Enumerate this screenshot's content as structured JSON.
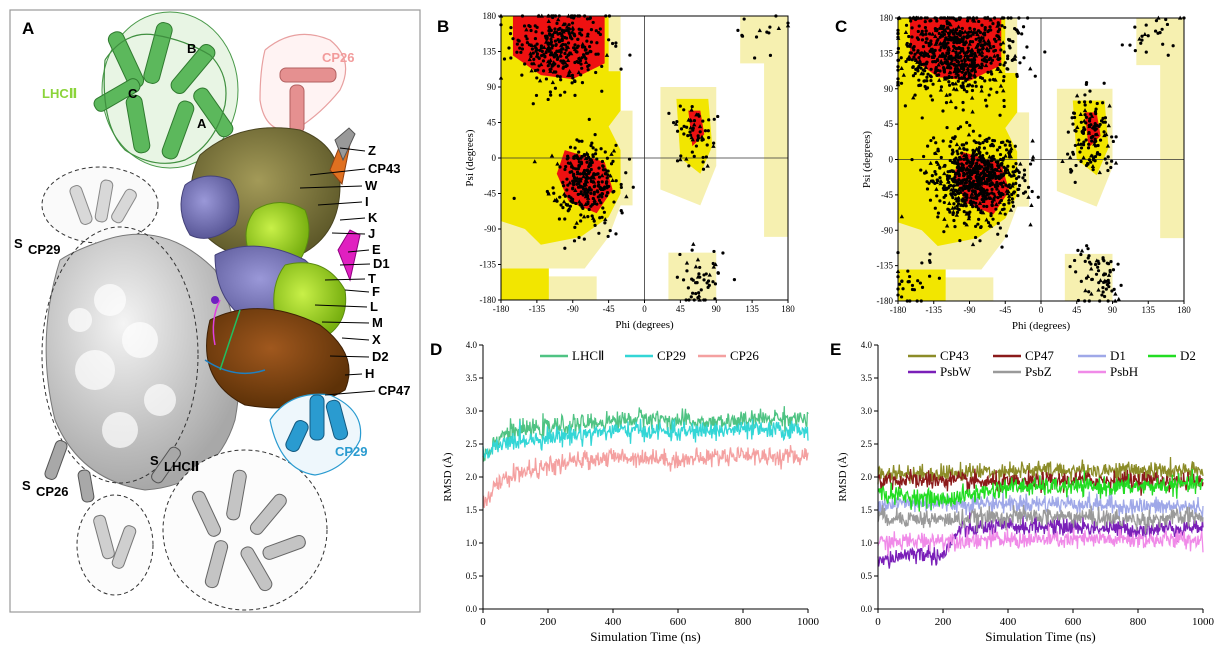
{
  "panel_letters": {
    "a": "A",
    "b": "B",
    "c": "C",
    "d": "D",
    "e": "E"
  },
  "panel_a": {
    "labels": {
      "lhc": "LHCⅡ",
      "lhc_b": "B",
      "lhc_c": "C",
      "lhc_a": "A",
      "cp26": "CP26",
      "cp29": "CP29",
      "s_cp29": "S",
      "s_cp29_sub": "CP29",
      "s_cp26": "S",
      "s_cp26_sub": "CP26",
      "s_lhc": "S",
      "s_lhc_sub": "LHCⅡ"
    },
    "subunit_labels": [
      "Z",
      "CP43",
      "W",
      "I",
      "K",
      "J",
      "E",
      "D1",
      "T",
      "F",
      "L",
      "M",
      "X",
      "D2",
      "H",
      "CP47"
    ],
    "colors": {
      "lhc": "#5cb85c",
      "lhc_text": "#8bd43a",
      "cp26": "#f2a0a0",
      "cp29": "#2a9bd0"
    }
  },
  "chart_data": [
    {
      "id": "B",
      "type": "scatter",
      "title": "",
      "xlabel": "Phi (degrees)",
      "ylabel": "Psi (degrees)",
      "xlim": [
        -180,
        180
      ],
      "ylim": [
        -180,
        180
      ],
      "xticks": [
        -180,
        -135,
        -90,
        -45,
        0,
        45,
        90,
        135,
        180
      ],
      "yticks": [
        180,
        135,
        90,
        45,
        0,
        -45,
        -90,
        -135,
        -180
      ],
      "clusters": [
        {
          "x": -110,
          "y": 140,
          "spread_x": 28,
          "spread_y": 25,
          "n": 320
        },
        {
          "x": -75,
          "y": -30,
          "spread_x": 22,
          "spread_y": 25,
          "n": 300
        },
        {
          "x": 62,
          "y": 30,
          "spread_x": 14,
          "spread_y": 22,
          "n": 60
        },
        {
          "x": 72,
          "y": -155,
          "spread_x": 18,
          "spread_y": 20,
          "n": 50
        },
        {
          "x": 150,
          "y": 160,
          "spread_x": 20,
          "spread_y": 15,
          "n": 15
        }
      ]
    },
    {
      "id": "C",
      "type": "scatter",
      "title": "",
      "xlabel": "Phi (degrees)",
      "ylabel": "Psi (degrees)",
      "xlim": [
        -180,
        180
      ],
      "ylim": [
        -180,
        180
      ],
      "xticks": [
        -180,
        -135,
        -90,
        -45,
        0,
        45,
        90,
        135,
        180
      ],
      "yticks": [
        180,
        135,
        90,
        45,
        0,
        -45,
        -90,
        -135,
        -180
      ],
      "clusters": [
        {
          "x": -105,
          "y": 135,
          "spread_x": 35,
          "spread_y": 28,
          "n": 700
        },
        {
          "x": -80,
          "y": -25,
          "spread_x": 28,
          "spread_y": 28,
          "n": 700
        },
        {
          "x": 62,
          "y": 30,
          "spread_x": 14,
          "spread_y": 25,
          "n": 130
        },
        {
          "x": 72,
          "y": -150,
          "spread_x": 18,
          "spread_y": 22,
          "n": 70
        },
        {
          "x": 140,
          "y": 160,
          "spread_x": 25,
          "spread_y": 15,
          "n": 25
        },
        {
          "x": -160,
          "y": -155,
          "spread_x": 15,
          "spread_y": 15,
          "n": 30
        }
      ]
    },
    {
      "id": "D",
      "type": "line",
      "title": "",
      "xlabel": "Simulation Time (ns)",
      "ylabel": "RMSD (Å)",
      "xlim": [
        0,
        1000
      ],
      "ylim": [
        0,
        4.0
      ],
      "xticks": [
        0,
        200,
        400,
        600,
        800,
        1000
      ],
      "yticks": [
        0.0,
        0.5,
        1.0,
        1.5,
        2.0,
        2.5,
        3.0,
        3.5,
        4.0
      ],
      "legend_position": "top-center",
      "series": [
        {
          "name": "LHCⅡ",
          "color": "#4fc383",
          "x": [
            0,
            30,
            60,
            100,
            200,
            300,
            400,
            500,
            600,
            700,
            800,
            900,
            1000
          ],
          "y": [
            2.3,
            2.5,
            2.65,
            2.7,
            2.75,
            2.8,
            2.85,
            2.9,
            2.85,
            2.82,
            2.85,
            2.9,
            2.88
          ]
        },
        {
          "name": "CP29",
          "color": "#33d6d6",
          "x": [
            0,
            30,
            60,
            100,
            200,
            300,
            400,
            500,
            600,
            700,
            800,
            900,
            1000
          ],
          "y": [
            2.3,
            2.4,
            2.5,
            2.55,
            2.6,
            2.65,
            2.7,
            2.7,
            2.68,
            2.7,
            2.72,
            2.7,
            2.72
          ]
        },
        {
          "name": "CP26",
          "color": "#f4a0a0",
          "x": [
            0,
            30,
            60,
            100,
            200,
            300,
            400,
            500,
            600,
            700,
            800,
            900,
            1000
          ],
          "y": [
            1.6,
            1.8,
            1.95,
            2.05,
            2.15,
            2.25,
            2.3,
            2.3,
            2.25,
            2.3,
            2.35,
            2.3,
            2.32
          ]
        }
      ]
    },
    {
      "id": "E",
      "type": "line",
      "title": "",
      "xlabel": "Simulation Time (ns)",
      "ylabel": "RMSD (Å)",
      "xlim": [
        0,
        1000
      ],
      "ylim": [
        0,
        4.0
      ],
      "xticks": [
        0,
        200,
        400,
        600,
        800,
        1000
      ],
      "yticks": [
        0.0,
        0.5,
        1.0,
        1.5,
        2.0,
        2.5,
        3.0,
        3.5,
        4.0
      ],
      "legend_position": "top",
      "series": [
        {
          "name": "CP43",
          "color": "#8c8c28",
          "x": [
            0,
            200,
            400,
            600,
            800,
            1000
          ],
          "y": [
            2.05,
            2.05,
            2.1,
            2.1,
            2.1,
            2.08
          ]
        },
        {
          "name": "CP47",
          "color": "#8b1a1a",
          "x": [
            0,
            200,
            400,
            600,
            800,
            1000
          ],
          "y": [
            1.95,
            1.95,
            1.9,
            1.95,
            1.95,
            1.92
          ]
        },
        {
          "name": "D1",
          "color": "#9fa8e8",
          "x": [
            0,
            200,
            400,
            600,
            800,
            1000
          ],
          "y": [
            1.6,
            1.6,
            1.6,
            1.6,
            1.55,
            1.55
          ]
        },
        {
          "name": "D2",
          "color": "#22dd22",
          "x": [
            0,
            200,
            400,
            600,
            800,
            1000
          ],
          "y": [
            1.75,
            1.65,
            1.85,
            1.85,
            1.85,
            1.9
          ]
        },
        {
          "name": "PsbW",
          "color": "#7a1fb8",
          "x": [
            0,
            100,
            200,
            250,
            400,
            600,
            800,
            1000
          ],
          "y": [
            0.7,
            0.85,
            0.8,
            1.2,
            1.25,
            1.25,
            1.2,
            1.25
          ]
        },
        {
          "name": "PsbZ",
          "color": "#9a9a9a",
          "x": [
            0,
            200,
            400,
            600,
            800,
            1000
          ],
          "y": [
            1.4,
            1.35,
            1.4,
            1.4,
            1.35,
            1.4
          ]
        },
        {
          "name": "PsbH",
          "color": "#f08ae8",
          "x": [
            0,
            200,
            400,
            600,
            800,
            1000
          ],
          "y": [
            1.0,
            1.05,
            1.05,
            1.05,
            1.05,
            1.05
          ]
        }
      ]
    }
  ]
}
